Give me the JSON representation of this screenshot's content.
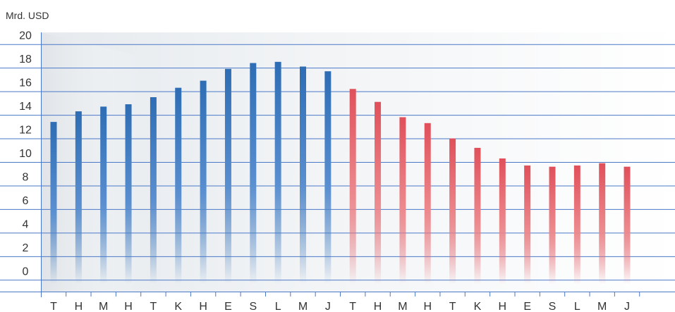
{
  "chart_data": {
    "type": "bar",
    "title": "",
    "xlabel": "",
    "ylabel": "Mrd. USD",
    "ylim": [
      -1,
      21
    ],
    "yticks": [
      0,
      2,
      4,
      6,
      8,
      10,
      12,
      14,
      16,
      18,
      20
    ],
    "grid": true,
    "categories": [
      "T",
      "H",
      "M",
      "H",
      "T",
      "K",
      "H",
      "E",
      "S",
      "L",
      "M",
      "J",
      "T",
      "H",
      "M",
      "H",
      "T",
      "K",
      "H",
      "E",
      "S",
      "L",
      "M",
      "J"
    ],
    "values": [
      13.4,
      14.3,
      14.7,
      14.9,
      15.5,
      16.3,
      16.9,
      17.9,
      18.4,
      18.5,
      18.1,
      17.7,
      16.2,
      15.1,
      13.8,
      13.3,
      12.0,
      11.2,
      10.3,
      9.7,
      9.6,
      9.7,
      9.9,
      9.6
    ],
    "colors": {
      "group_1": "#2e6db4",
      "group_2": "#e0505a",
      "grid": "#4a78c8",
      "background": "#eef1f4"
    },
    "color_groups": [
      1,
      1,
      1,
      1,
      1,
      1,
      1,
      1,
      1,
      1,
      1,
      1,
      2,
      2,
      2,
      2,
      2,
      2,
      2,
      2,
      2,
      2,
      2,
      2
    ]
  }
}
